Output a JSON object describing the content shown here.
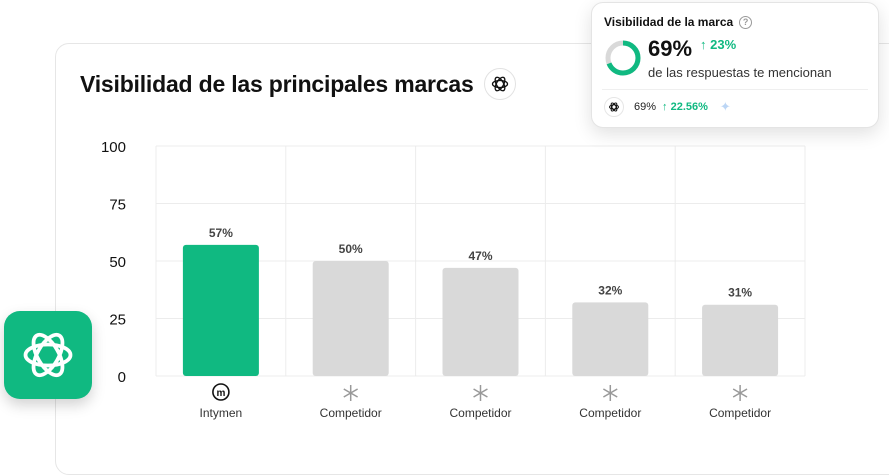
{
  "chart_data": {
    "type": "bar",
    "title": "Visibilidad de las principales marcas",
    "categories": [
      "Intymen",
      "Competidor",
      "Competidor",
      "Competidor",
      "Competidor"
    ],
    "values": [
      57,
      50,
      47,
      32,
      31
    ],
    "value_labels": [
      "57%",
      "50%",
      "47%",
      "32%",
      "31%"
    ],
    "highlight_index": 0,
    "yticks": [
      "0",
      "25",
      "50",
      "75",
      "100"
    ],
    "ylim": [
      0,
      100
    ],
    "grid": true,
    "colors": {
      "highlight": "#10b981",
      "other": "#d9d9d9",
      "grid": "#ececec"
    }
  },
  "visibility_card": {
    "title": "Visibilidad de la marca",
    "percent": "69%",
    "percent_value": 69,
    "delta": "23%",
    "subtitle": "de las respuestas te mencionan",
    "footer_percent": "69%",
    "footer_delta": "22.56%"
  },
  "icons": {
    "title_logo": "openai-logo-icon",
    "app_tile": "openai-app-icon",
    "brand_logo": "intymen-logo-icon",
    "competitor": "asterisk-icon",
    "help": "help-icon",
    "trend": "arrow-up-icon",
    "sparkle": "sparkle-icon"
  }
}
